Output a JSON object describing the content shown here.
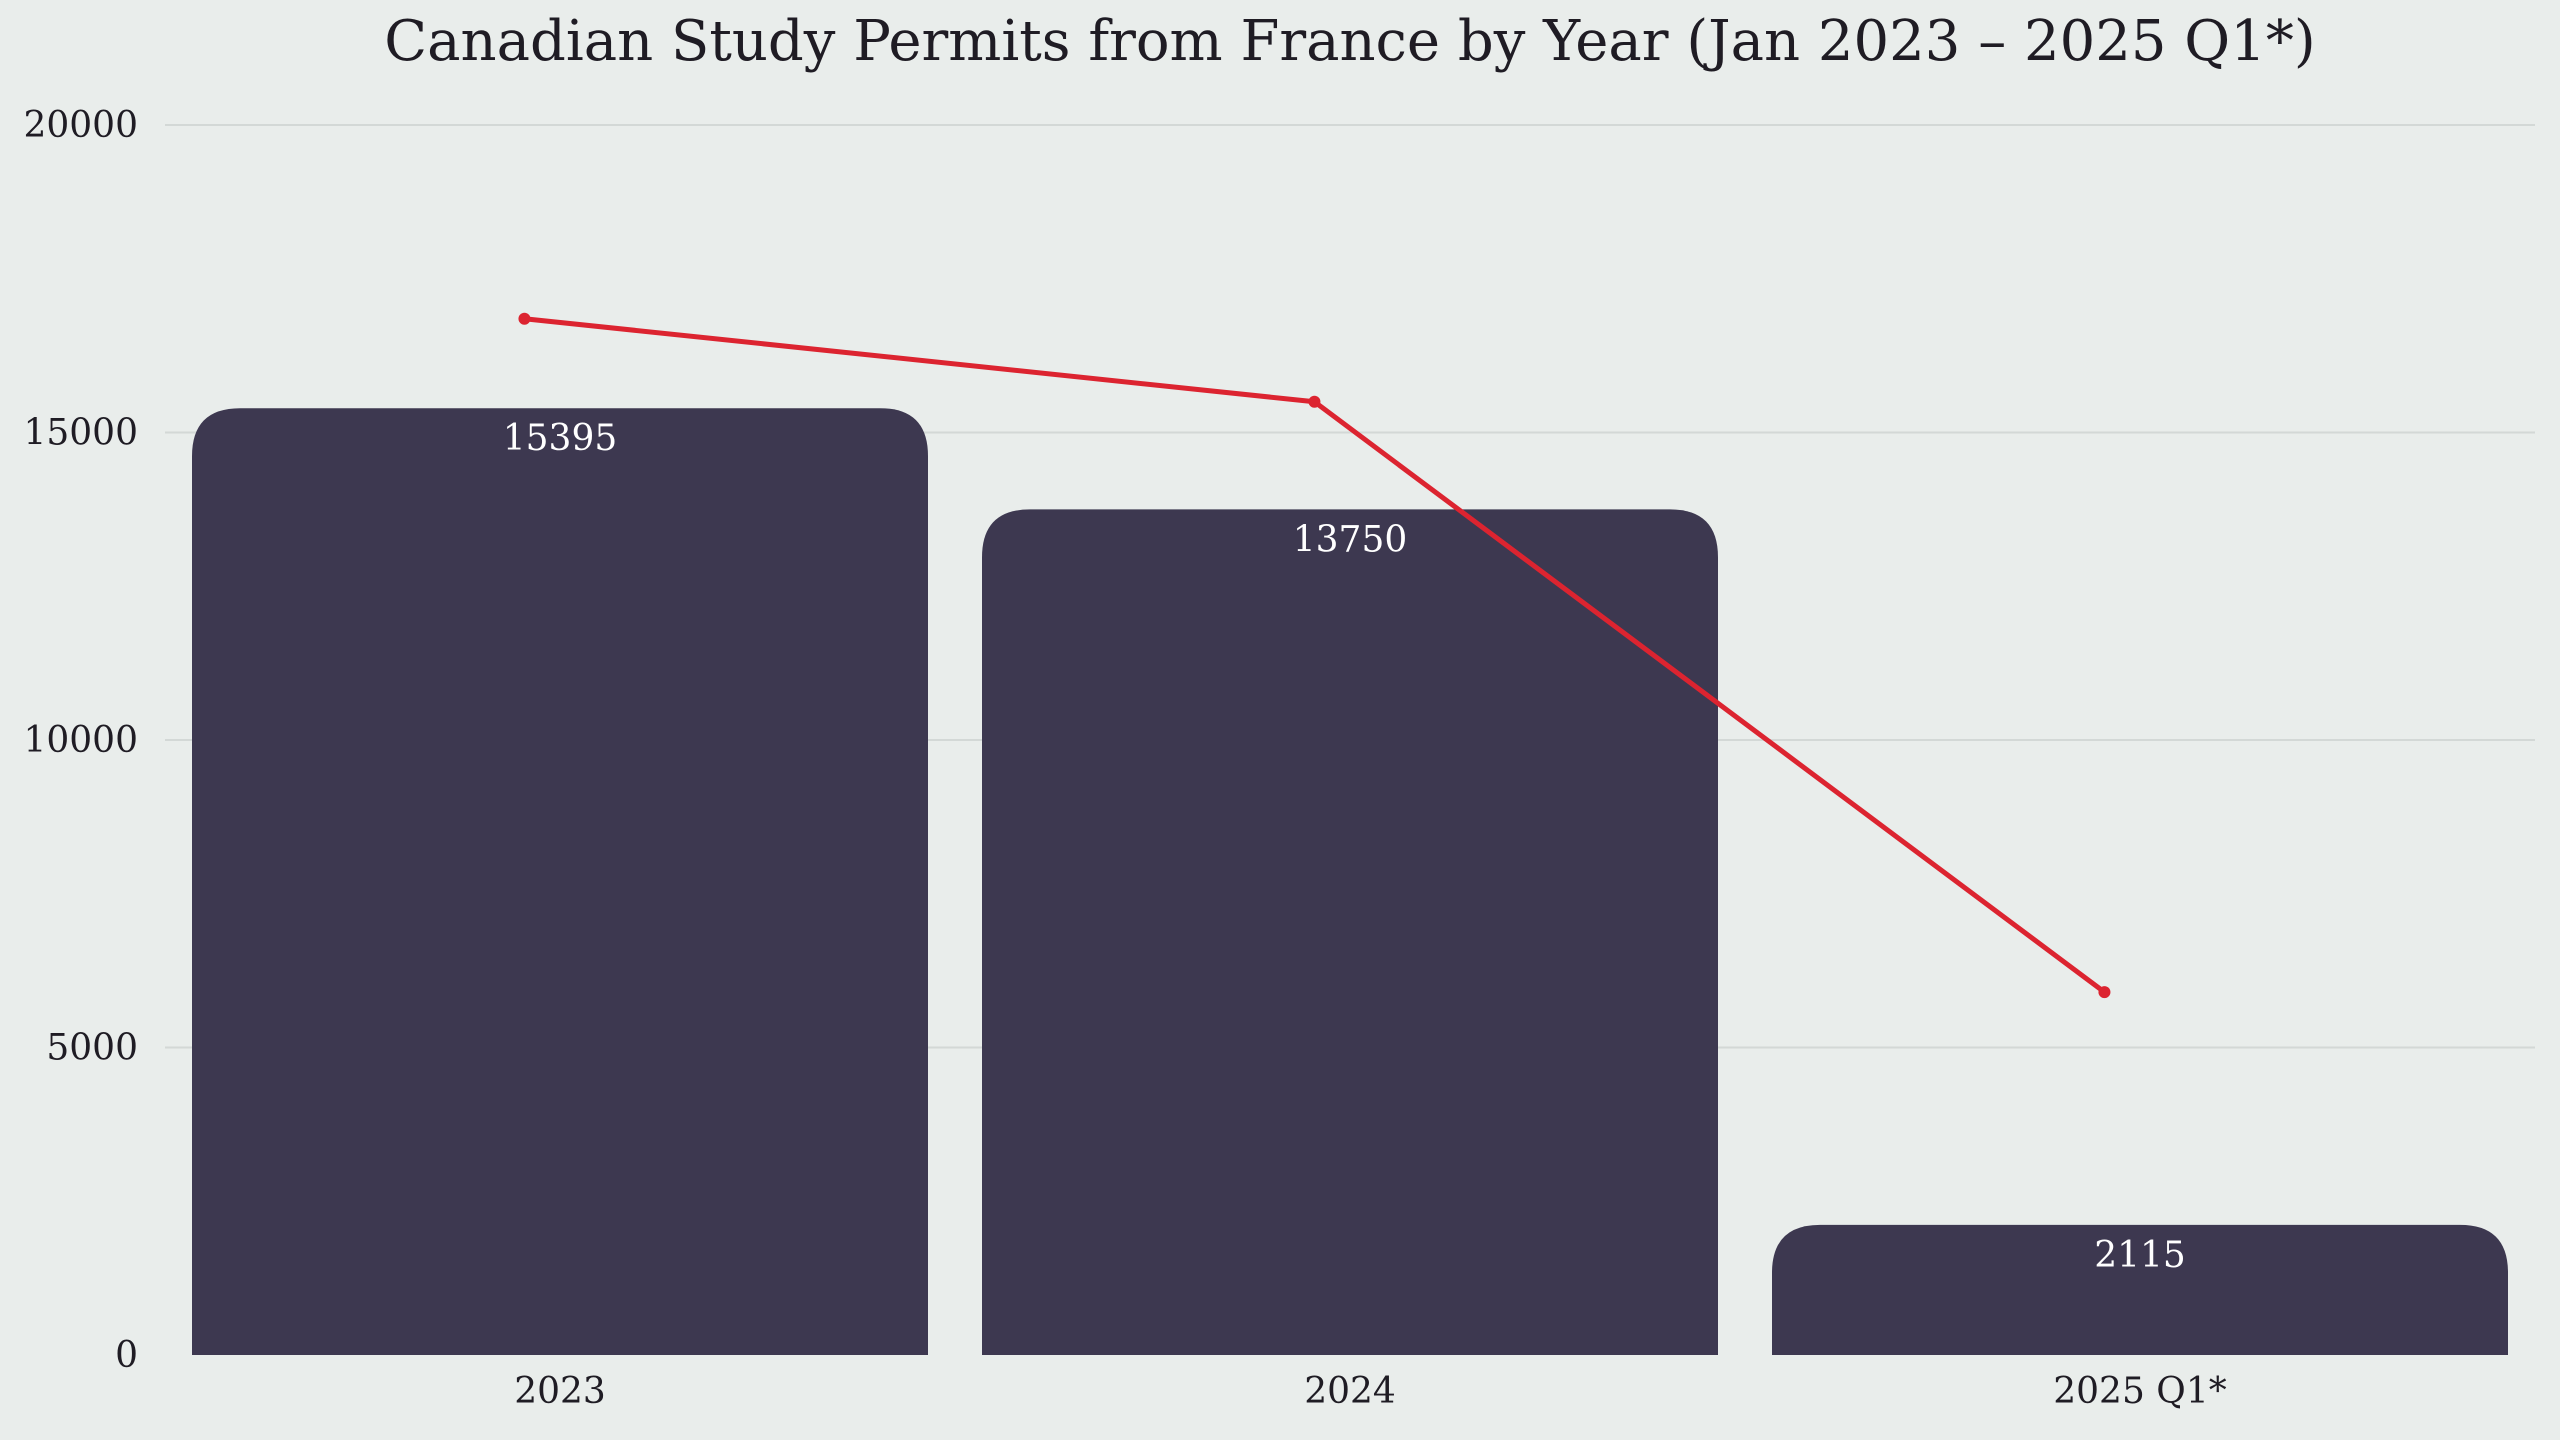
{
  "chart_data": {
    "type": "bar",
    "title": "Canadian Study Permits from France by Year (Jan 2023 – 2025 Q1*)",
    "xlabel": "",
    "ylabel": "",
    "categories": [
      "2023",
      "2024",
      "2025 Q1*"
    ],
    "series": [
      {
        "type": "bar",
        "values": [
          15395,
          13750,
          2115
        ],
        "color": "#3d3850",
        "data_labels": [
          "15395",
          "13750",
          "2115"
        ]
      },
      {
        "type": "line",
        "values": [
          16850,
          15500,
          5900
        ],
        "color": "#dc2430"
      }
    ],
    "yticks": [
      "0",
      "5000",
      "10000",
      "15000",
      "20000"
    ],
    "ytick_values": [
      0,
      5000,
      10000,
      15000,
      20000
    ],
    "ylim": [
      0,
      20000
    ],
    "grid": true,
    "legend": "none",
    "colors": {
      "background": "#e9edeb",
      "bar": "#3d3850",
      "line": "#dc2430",
      "grid": "#d3d8d6"
    }
  }
}
